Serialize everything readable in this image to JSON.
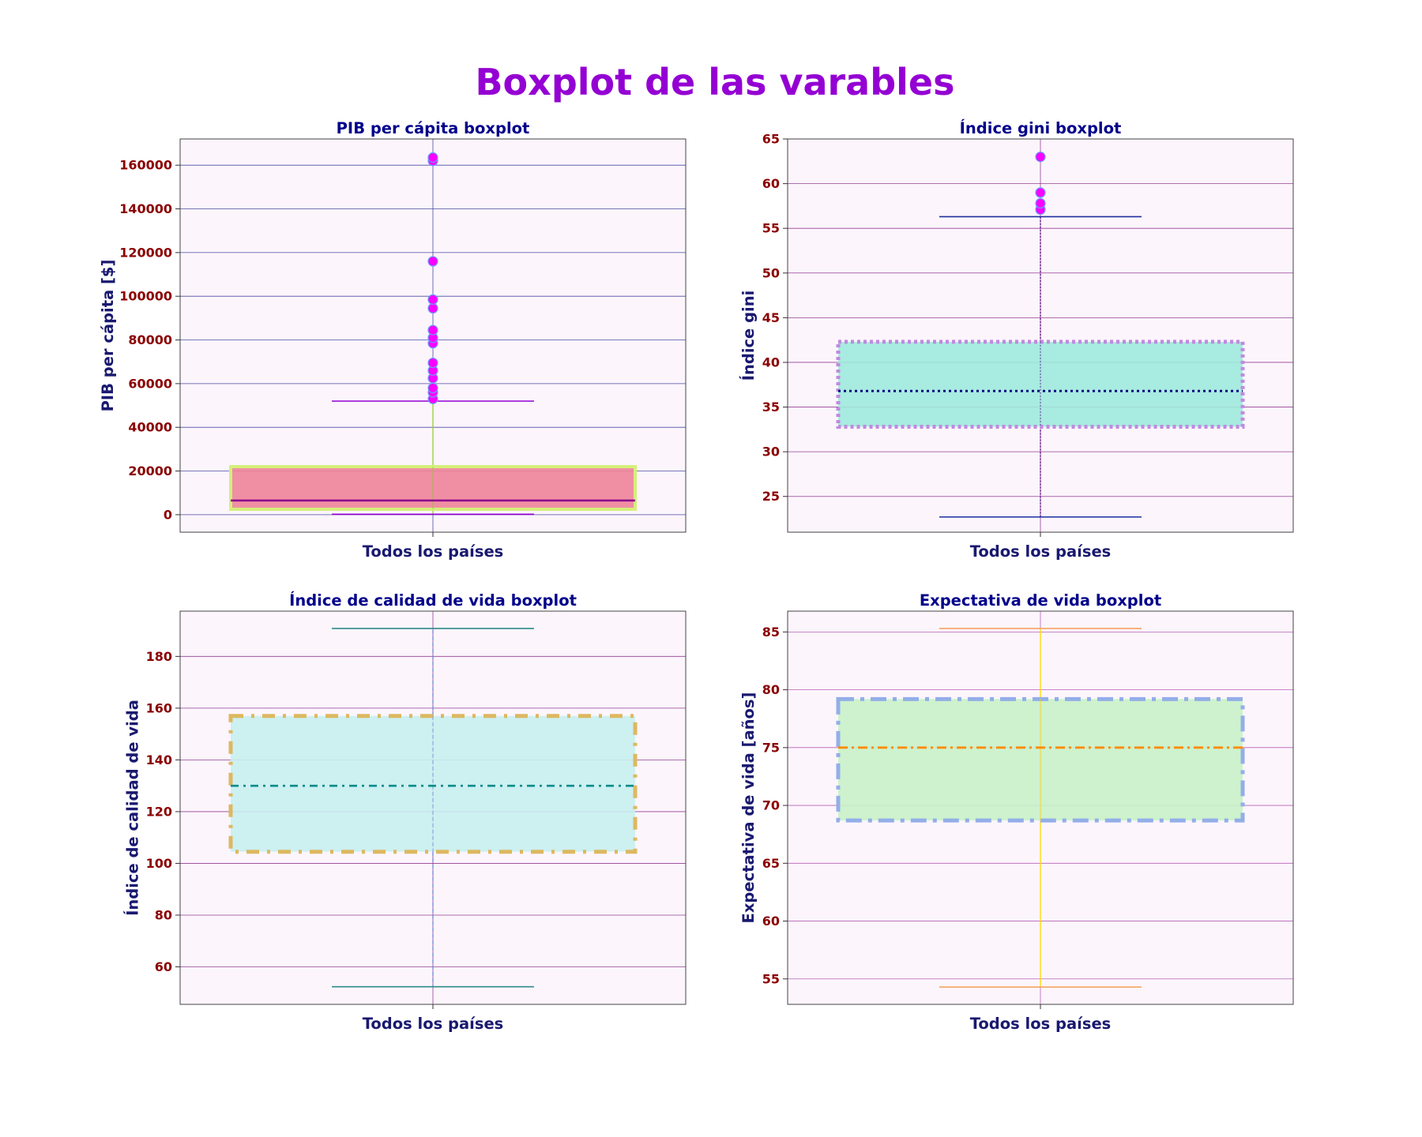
{
  "figure": {
    "suptitle": "Boxplot de las varables",
    "suptitle_color": "#9400D3"
  },
  "style": {
    "panel_bg": "#FCF5FC",
    "title_color": "#00008B",
    "label_color": "#191970",
    "tick_color": "#8B0000",
    "flier_color": "#FF00FF",
    "flier_edge": "#6A9BFF"
  },
  "chart_data": [
    {
      "type": "box",
      "title": "PIB per cápita boxplot",
      "xlabel": "Todos los países",
      "ylabel": "PIB per cápita [$]",
      "categories": [
        "Todos los países"
      ],
      "ylim": [
        -8000,
        172000
      ],
      "yticks": [
        0,
        20000,
        40000,
        60000,
        80000,
        100000,
        120000,
        140000,
        160000
      ],
      "ytick_labels": [
        "0",
        "20000",
        "40000",
        "60000",
        "80000",
        "100000",
        "120000",
        "140000",
        "160000"
      ],
      "grid": true,
      "grid_color": "#3A3A9A",
      "box": {
        "whisker_low": 200,
        "q1": 2500,
        "median": 6500,
        "q3": 22000,
        "whisker_high": 52000,
        "fliers": [
          53000,
          56000,
          58000,
          62500,
          66000,
          69500,
          78500,
          81000,
          84500,
          94500,
          98500,
          116000,
          162000,
          163500
        ]
      },
      "colors": {
        "box_fill": "#EE8499",
        "box_edge": "#D4F07A",
        "median": "#8B008B",
        "whisker": "#9ACD32",
        "cap": "#9400D3"
      }
    },
    {
      "type": "box",
      "title": "Índice gini boxplot",
      "xlabel": "Todos los países",
      "ylabel": "Índice gini",
      "categories": [
        "Todos los países"
      ],
      "ylim": [
        21,
        65
      ],
      "yticks": [
        25,
        30,
        35,
        40,
        45,
        50,
        55,
        60,
        65
      ],
      "ytick_labels": [
        "25",
        "30",
        "35",
        "40",
        "45",
        "50",
        "55",
        "60",
        "65"
      ],
      "grid": true,
      "grid_color": "#8B2B8B",
      "box": {
        "whisker_low": 22.7,
        "q1": 32.8,
        "median": 36.8,
        "q3": 42.3,
        "whisker_high": 56.3,
        "fliers": [
          57.1,
          57.8,
          59.0,
          63.0
        ]
      },
      "colors": {
        "box_fill": "#9EEADD",
        "box_edge": "#C08AE0",
        "median": "#000080",
        "whisker": "#4B0082",
        "cap": "#1E2F9E"
      }
    },
    {
      "type": "box",
      "title": "Índice de calidad de vida boxplot",
      "xlabel": "Todos los países",
      "ylabel": "Índice de calidad de vida",
      "categories": [
        "Todos los países"
      ],
      "ylim": [
        45.5,
        197.5
      ],
      "yticks": [
        60,
        80,
        100,
        120,
        140,
        160,
        180
      ],
      "ytick_labels": [
        "60",
        "80",
        "100",
        "120",
        "140",
        "160",
        "180"
      ],
      "grid": true,
      "grid_color": "#8B2B8B",
      "box": {
        "whisker_low": 52.3,
        "q1": 104.5,
        "median": 130.0,
        "q3": 157.0,
        "whisker_high": 190.8,
        "fliers": []
      },
      "colors": {
        "box_fill": "#C8EFF0",
        "box_edge": "#DDB860",
        "median": "#008B8B",
        "whisker": "#6A8BD4",
        "cap": "#2E8B8B"
      }
    },
    {
      "type": "box",
      "title": "Expectativa de vida boxplot",
      "xlabel": "Todos los países",
      "ylabel": "Expectativa de vida [años]",
      "categories": [
        "Todos los países"
      ],
      "ylim": [
        52.8,
        86.8
      ],
      "yticks": [
        55,
        60,
        65,
        70,
        75,
        80,
        85
      ],
      "ytick_labels": [
        "55",
        "60",
        "65",
        "70",
        "75",
        "80",
        "85"
      ],
      "grid": true,
      "grid_color": "#B050B0",
      "box": {
        "whisker_low": 54.3,
        "q1": 68.7,
        "median": 75.0,
        "q3": 79.2,
        "whisker_high": 85.3,
        "fliers": []
      },
      "colors": {
        "box_fill": "#C8F2C8",
        "box_edge": "#93AEE8",
        "median": "#FF8C00",
        "whisker": "#FFD700",
        "cap": "#F4A460"
      }
    }
  ]
}
